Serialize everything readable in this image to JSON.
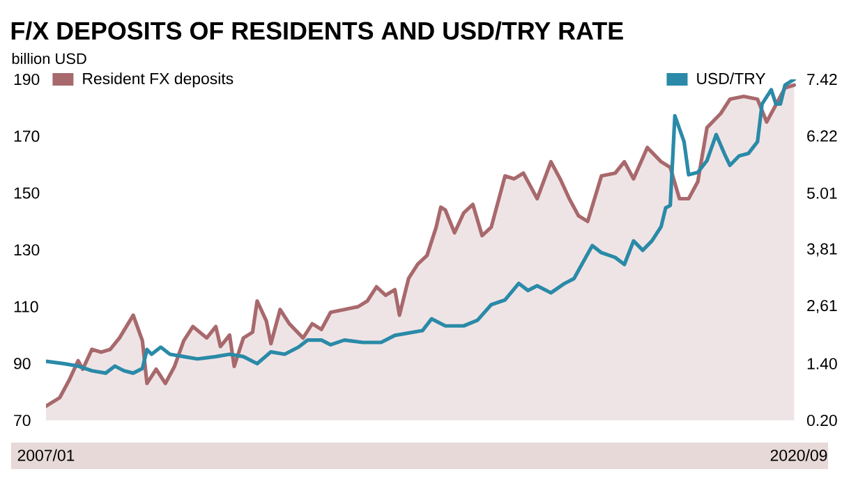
{
  "chart_data": {
    "type": "line",
    "title": "F/X DEPOSITS OF RESIDENTS AND USD/TRY RATE",
    "ylabel": "billion USD",
    "legend": "top",
    "xlim": [
      "2007-01",
      "2020-09"
    ],
    "xticks": [
      {
        "value": "2007-01",
        "label": "2007/01"
      },
      {
        "value": "2020-09",
        "label": "2020/09"
      }
    ],
    "ylim": [
      70,
      190
    ],
    "yticks": [
      70,
      90,
      110,
      130,
      150,
      170,
      190
    ],
    "y2lim": [
      0.2,
      7.42
    ],
    "y2ticks": [
      {
        "value": 0.2,
        "label": "0.20"
      },
      {
        "value": 1.4,
        "label": "1.40"
      },
      {
        "value": 2.61,
        "label": "2,61"
      },
      {
        "value": 3.81,
        "label": "3,81"
      },
      {
        "value": 5.01,
        "label": "5.01"
      },
      {
        "value": 6.22,
        "label": "6.22"
      },
      {
        "value": 7.42,
        "label": "7.42"
      }
    ],
    "series": [
      {
        "name": "Resident FX deposits",
        "type": "area",
        "color": "#a8696c",
        "x": [
          "2007-01",
          "2007-04",
          "2007-06",
          "2007-08",
          "2007-09",
          "2007-11",
          "2008-01",
          "2008-03",
          "2008-05",
          "2008-08",
          "2008-10",
          "2008-11",
          "2009-01",
          "2009-03",
          "2009-05",
          "2009-07",
          "2009-09",
          "2009-12",
          "2010-02",
          "2010-03",
          "2010-05",
          "2010-06",
          "2010-08",
          "2010-10",
          "2010-11",
          "2011-01",
          "2011-02",
          "2011-04",
          "2011-06",
          "2011-09",
          "2011-11",
          "2012-01",
          "2012-03",
          "2012-06",
          "2012-09",
          "2012-11",
          "2013-01",
          "2013-03",
          "2013-05",
          "2013-06",
          "2013-08",
          "2013-10",
          "2013-12",
          "2014-02",
          "2014-03",
          "2014-04",
          "2014-06",
          "2014-08",
          "2014-10",
          "2014-12",
          "2015-02",
          "2015-05",
          "2015-07",
          "2015-09",
          "2015-12",
          "2016-03",
          "2016-05",
          "2016-07",
          "2016-09",
          "2016-11",
          "2017-02",
          "2017-05",
          "2017-07",
          "2017-09",
          "2017-12",
          "2018-03",
          "2018-05",
          "2018-07",
          "2018-09",
          "2018-11",
          "2019-01",
          "2019-04",
          "2019-06",
          "2019-09",
          "2019-12",
          "2020-02",
          "2020-04",
          "2020-06",
          "2020-08"
        ],
        "values": [
          75,
          78,
          84,
          91,
          88,
          95,
          94,
          95,
          99,
          107,
          98,
          83,
          88,
          83,
          89,
          98,
          103,
          99,
          103,
          96,
          100,
          89,
          99,
          101,
          112,
          105,
          97,
          109,
          104,
          99,
          104,
          102,
          108,
          109,
          110,
          112,
          117,
          114,
          116,
          107,
          120,
          125,
          128,
          138,
          145,
          144,
          136,
          143,
          146,
          135,
          138,
          156,
          155,
          157,
          148,
          161,
          155,
          148,
          142,
          140,
          156,
          157,
          161,
          155,
          166,
          161,
          159,
          148,
          148,
          154,
          173,
          178,
          183,
          184,
          183,
          175,
          181,
          187,
          188
        ]
      },
      {
        "name": "USD/TRY",
        "axis": "y2",
        "color": "#2a8aa8",
        "x": [
          "2007-01",
          "2007-05",
          "2007-08",
          "2007-11",
          "2008-02",
          "2008-04",
          "2008-06",
          "2008-08",
          "2008-10",
          "2008-11",
          "2008-12",
          "2009-02",
          "2009-04",
          "2009-07",
          "2009-10",
          "2010-02",
          "2010-05",
          "2010-08",
          "2010-11",
          "2011-02",
          "2011-05",
          "2011-08",
          "2011-10",
          "2012-01",
          "2012-03",
          "2012-06",
          "2012-10",
          "2013-02",
          "2013-05",
          "2013-08",
          "2013-11",
          "2014-01",
          "2014-04",
          "2014-08",
          "2014-11",
          "2015-02",
          "2015-05",
          "2015-08",
          "2015-10",
          "2015-12",
          "2016-03",
          "2016-06",
          "2016-08",
          "2016-10",
          "2016-12",
          "2017-02",
          "2017-05",
          "2017-07",
          "2017-09",
          "2017-11",
          "2018-01",
          "2018-03",
          "2018-04",
          "2018-05",
          "2018-06",
          "2018-08",
          "2018-09",
          "2018-11",
          "2019-01",
          "2019-03",
          "2019-05",
          "2019-06",
          "2019-08",
          "2019-10",
          "2019-12",
          "2020-01",
          "2020-03",
          "2020-04",
          "2020-05",
          "2020-06",
          "2020-08"
        ],
        "values": [
          1.45,
          1.4,
          1.35,
          1.25,
          1.2,
          1.35,
          1.25,
          1.2,
          1.3,
          1.7,
          1.6,
          1.75,
          1.6,
          1.55,
          1.5,
          1.55,
          1.6,
          1.55,
          1.4,
          1.65,
          1.6,
          1.75,
          1.9,
          1.9,
          1.8,
          1.9,
          1.85,
          1.85,
          2.0,
          2.05,
          2.1,
          2.35,
          2.2,
          2.2,
          2.32,
          2.65,
          2.75,
          3.1,
          2.95,
          3.05,
          2.9,
          3.1,
          3.2,
          3.55,
          3.9,
          3.75,
          3.65,
          3.5,
          4.0,
          3.8,
          4.0,
          4.3,
          4.7,
          4.75,
          6.65,
          6.1,
          5.4,
          5.45,
          5.7,
          6.25,
          5.8,
          5.6,
          5.8,
          5.85,
          6.1,
          6.9,
          7.2,
          6.9,
          6.9,
          7.3,
          7.42
        ]
      }
    ]
  }
}
